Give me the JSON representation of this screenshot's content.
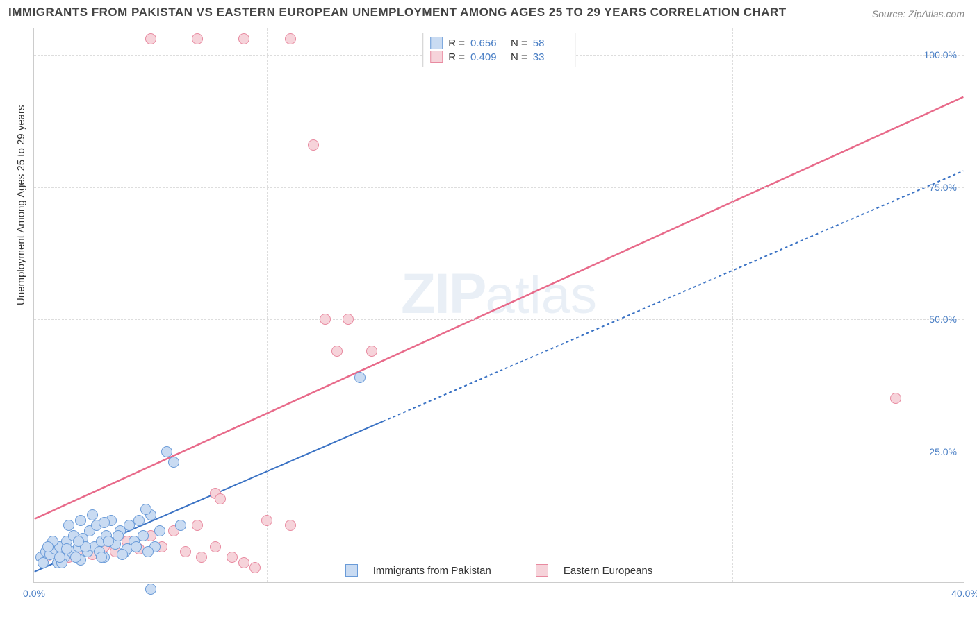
{
  "title": "IMMIGRANTS FROM PAKISTAN VS EASTERN EUROPEAN UNEMPLOYMENT AMONG AGES 25 TO 29 YEARS CORRELATION CHART",
  "source": "Source: ZipAtlas.com",
  "y_axis_label": "Unemployment Among Ages 25 to 29 years",
  "watermark_a": "ZIP",
  "watermark_b": "atlas",
  "chart": {
    "type": "scatter",
    "xlim": [
      0,
      40
    ],
    "ylim": [
      0,
      105
    ],
    "x_ticks": [
      0,
      40
    ],
    "x_tick_labels": [
      "0.0%",
      "40.0%"
    ],
    "y_ticks": [
      25,
      50,
      75,
      100
    ],
    "y_tick_labels": [
      "25.0%",
      "50.0%",
      "75.0%",
      "100.0%"
    ],
    "grid_color": "#dddddd",
    "background_color": "#ffffff",
    "border_color": "#cccccc",
    "marker_radius": 8,
    "marker_stroke_width": 1,
    "label_fontsize": 15,
    "tick_fontsize": 14,
    "tick_color": "#4a7fc5",
    "series": [
      {
        "name": "Immigrants from Pakistan",
        "color_fill": "#c9dbf2",
        "color_stroke": "#6a9bd8",
        "line_color": "#3a72c4",
        "line_width": 2,
        "line_dash_extend": "4,4",
        "R": "0.656",
        "N": "58",
        "trend": {
          "x1": 0,
          "y1": 2,
          "x2": 40,
          "y2": 78,
          "solid_until_x": 15
        },
        "points": [
          [
            0.3,
            5
          ],
          [
            0.5,
            6
          ],
          [
            0.7,
            5.5
          ],
          [
            0.9,
            6.5
          ],
          [
            1.0,
            4
          ],
          [
            1.1,
            7
          ],
          [
            1.3,
            5
          ],
          [
            1.4,
            8
          ],
          [
            1.6,
            6
          ],
          [
            1.7,
            9
          ],
          [
            1.9,
            7
          ],
          [
            2.0,
            4.5
          ],
          [
            2.1,
            8.5
          ],
          [
            2.3,
            6
          ],
          [
            2.4,
            10
          ],
          [
            2.6,
            7
          ],
          [
            2.7,
            11
          ],
          [
            2.9,
            8
          ],
          [
            3.0,
            5
          ],
          [
            3.1,
            9
          ],
          [
            3.3,
            12
          ],
          [
            3.5,
            7.5
          ],
          [
            3.7,
            10
          ],
          [
            3.9,
            6
          ],
          [
            4.1,
            11
          ],
          [
            4.3,
            8
          ],
          [
            4.5,
            12
          ],
          [
            4.7,
            9
          ],
          [
            5.0,
            13
          ],
          [
            5.2,
            7
          ],
          [
            5.4,
            10
          ],
          [
            5.7,
            25
          ],
          [
            6.0,
            23
          ],
          [
            6.3,
            11
          ],
          [
            5.0,
            -1
          ],
          [
            2.0,
            12
          ],
          [
            2.5,
            13
          ],
          [
            3.0,
            11.5
          ],
          [
            1.5,
            11
          ],
          [
            4.8,
            14
          ],
          [
            0.8,
            8
          ],
          [
            1.2,
            4
          ],
          [
            1.8,
            5
          ],
          [
            2.2,
            7
          ],
          [
            2.8,
            6
          ],
          [
            3.2,
            8
          ],
          [
            3.6,
            9
          ],
          [
            4.0,
            6.5
          ],
          [
            4.4,
            7
          ],
          [
            4.9,
            6
          ],
          [
            0.4,
            4
          ],
          [
            0.6,
            7
          ],
          [
            1.1,
            5
          ],
          [
            3.8,
            5.5
          ],
          [
            2.9,
            5
          ],
          [
            14.0,
            39
          ],
          [
            1.4,
            6.5
          ],
          [
            1.9,
            8
          ]
        ]
      },
      {
        "name": "Eastern Europeans",
        "color_fill": "#f6d3da",
        "color_stroke": "#e88aa0",
        "line_color": "#e86a8a",
        "line_width": 2.5,
        "R": "0.409",
        "N": "33",
        "trend": {
          "x1": 0,
          "y1": 12,
          "x2": 40,
          "y2": 92
        },
        "points": [
          [
            0.5,
            5
          ],
          [
            1.0,
            6
          ],
          [
            1.5,
            5
          ],
          [
            2.0,
            6.5
          ],
          [
            2.5,
            5.5
          ],
          [
            3.0,
            7
          ],
          [
            3.5,
            6
          ],
          [
            4.0,
            8
          ],
          [
            4.5,
            6.5
          ],
          [
            5.0,
            9
          ],
          [
            5.5,
            7
          ],
          [
            6.0,
            10
          ],
          [
            6.5,
            6
          ],
          [
            7.0,
            11
          ],
          [
            7.2,
            5
          ],
          [
            7.8,
            17
          ],
          [
            7.8,
            7
          ],
          [
            8.0,
            16
          ],
          [
            8.5,
            5
          ],
          [
            9.0,
            4
          ],
          [
            10.0,
            12
          ],
          [
            11.0,
            11
          ],
          [
            12.5,
            50
          ],
          [
            13.5,
            50
          ],
          [
            13.0,
            44
          ],
          [
            14.5,
            44
          ],
          [
            12.0,
            83
          ],
          [
            7.0,
            103
          ],
          [
            9.0,
            103
          ],
          [
            11.0,
            103
          ],
          [
            5.0,
            103
          ],
          [
            37.0,
            35
          ],
          [
            9.5,
            3
          ]
        ]
      }
    ],
    "x_legend": [
      {
        "label": "Immigrants from Pakistan",
        "fill": "#c9dbf2",
        "stroke": "#6a9bd8"
      },
      {
        "label": "Eastern Europeans",
        "fill": "#f6d3da",
        "stroke": "#e88aa0"
      }
    ],
    "top_legend_labels": {
      "R": "R  =",
      "N": "N  ="
    }
  }
}
